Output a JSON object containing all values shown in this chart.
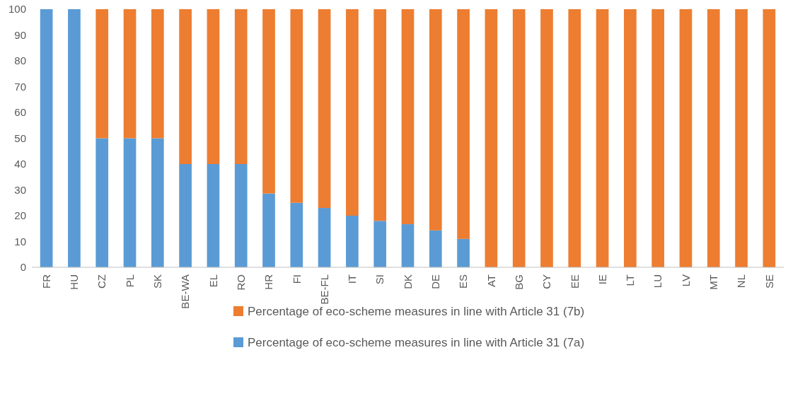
{
  "chart_data": {
    "type": "bar",
    "stacked": true,
    "categories": [
      "FR",
      "HU",
      "CZ",
      "PL",
      "SK",
      "BE-WA",
      "EL",
      "RO",
      "HR",
      "FI",
      "BE-FL",
      "IT",
      "SI",
      "DK",
      "DE",
      "ES",
      "AT",
      "BG",
      "CY",
      "EE",
      "IE",
      "LT",
      "LU",
      "LV",
      "MT",
      "NL",
      "SE"
    ],
    "series": [
      {
        "name": "Percentage of eco-scheme measures in line with Article 31 (7a)",
        "color": "#5b9bd5",
        "values": [
          100,
          100,
          50,
          50,
          50,
          40,
          40,
          40,
          28.6,
          25,
          23,
          20,
          18,
          16.7,
          14.3,
          11,
          0,
          0,
          0,
          0,
          0,
          0,
          0,
          0,
          0,
          0,
          0
        ]
      },
      {
        "name": "Percentage of eco-scheme measures in line with Article 31 (7b)",
        "color": "#ed7d31",
        "values": [
          0,
          0,
          50,
          50,
          50,
          60,
          60,
          60,
          71.4,
          75,
          77,
          80,
          82,
          83.3,
          85.7,
          89,
          100,
          100,
          100,
          100,
          100,
          100,
          100,
          100,
          100,
          100,
          100
        ]
      }
    ],
    "ylim": [
      0,
      100
    ],
    "yticks": [
      0,
      10,
      20,
      30,
      40,
      50,
      60,
      70,
      80,
      90,
      100
    ],
    "legend": "bottom"
  }
}
